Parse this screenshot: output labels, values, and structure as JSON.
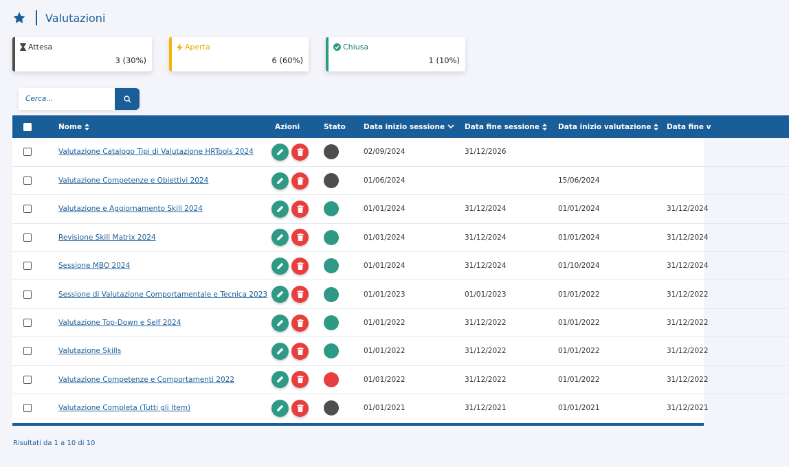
{
  "header": {
    "title": "Valutazioni",
    "icon": "star-icon"
  },
  "status_cards": [
    {
      "label": "Attesa",
      "value": "3 (30%)",
      "icon": "hourglass-icon",
      "color": "#4e4e4e"
    },
    {
      "label": "Aperta",
      "value": "6 (60%)",
      "icon": "lightning-icon",
      "color": "#f2b705"
    },
    {
      "label": "Chiusa",
      "value": "1 (10%)",
      "icon": "check-circle-icon",
      "color": "#2e9a86"
    }
  ],
  "search": {
    "placeholder": "Cerca...",
    "value": ""
  },
  "table": {
    "columns": [
      "Nome",
      "Azioni",
      "Stato",
      "Data inizio sessione",
      "Data fine sessione",
      "Data inizio valutazione",
      "Data fine v"
    ],
    "rows": [
      {
        "name": "Valutazione Catalogo Tipi di Valutazione HRTools 2024",
        "status": "attesa",
        "start_session": "02/09/2024",
        "end_session": "31/12/2026",
        "start_eval": "",
        "end_eval": ""
      },
      {
        "name": "Valutazione Competenze e Obiettivi 2024",
        "status": "attesa",
        "start_session": "01/06/2024",
        "end_session": "",
        "start_eval": "15/06/2024",
        "end_eval": ""
      },
      {
        "name": "Valutazione e Aggiornamento Skill 2024",
        "status": "aperta",
        "start_session": "01/01/2024",
        "end_session": "31/12/2024",
        "start_eval": "01/01/2024",
        "end_eval": "31/12/2024"
      },
      {
        "name": "Revisione Skill Matrix 2024",
        "status": "aperta",
        "start_session": "01/01/2024",
        "end_session": "31/12/2024",
        "start_eval": "01/01/2024",
        "end_eval": "31/12/2024"
      },
      {
        "name": "Sessione MBO 2024",
        "status": "aperta",
        "start_session": "01/01/2024",
        "end_session": "31/12/2024",
        "start_eval": "01/10/2024",
        "end_eval": "31/12/2024"
      },
      {
        "name": "Sessione di Valutazione Comportamentale e Tecnica 2023",
        "status": "aperta",
        "start_session": "01/01/2023",
        "end_session": "01/01/2023",
        "start_eval": "01/01/2022",
        "end_eval": "31/12/2022"
      },
      {
        "name": "Valutazione Top-Down e Self 2024",
        "status": "aperta",
        "start_session": "01/01/2022",
        "end_session": "31/12/2022",
        "start_eval": "01/01/2022",
        "end_eval": "31/12/2022"
      },
      {
        "name": "Valutazione Skills",
        "status": "aperta",
        "start_session": "01/01/2022",
        "end_session": "31/12/2022",
        "start_eval": "01/01/2022",
        "end_eval": "31/12/2022"
      },
      {
        "name": "Valutazione Competenze e Comportamenti 2022",
        "status": "chiusa",
        "start_session": "01/01/2022",
        "end_session": "31/12/2022",
        "start_eval": "01/01/2022",
        "end_eval": "31/12/2022"
      },
      {
        "name": "Valutazione Completa (Tutti gli Item)",
        "status": "attesa",
        "start_session": "01/01/2021",
        "end_session": "31/12/2021",
        "start_eval": "01/01/2021",
        "end_eval": "31/12/2021"
      }
    ]
  },
  "status_colors": {
    "attesa": "#4e4e4e",
    "aperta": "#2e9a86",
    "chiusa": "#e83e3e"
  },
  "footer": {
    "results": "Risultati da 1 a 10 di 10"
  }
}
